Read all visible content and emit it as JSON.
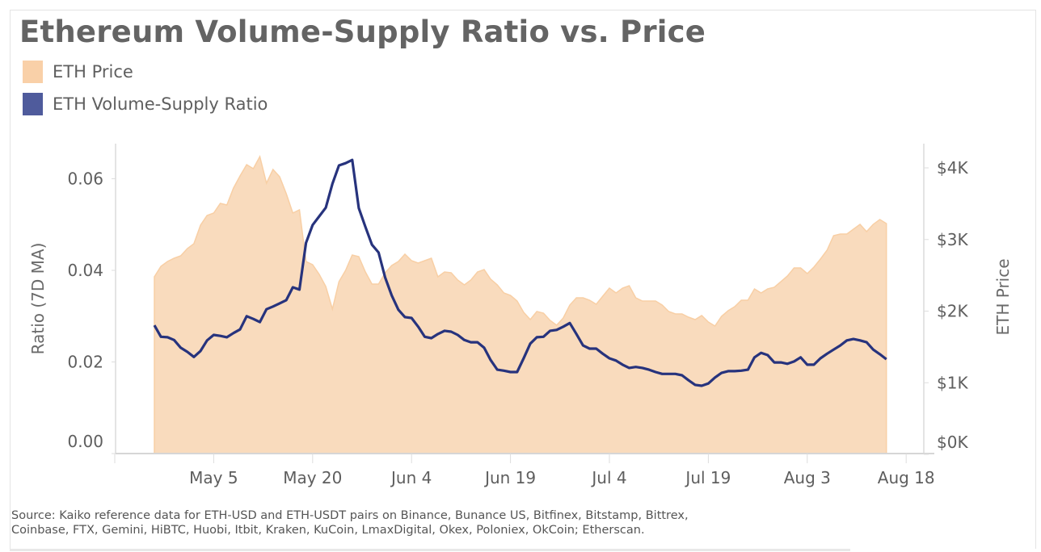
{
  "title": "Ethereum Volume-Supply Ratio vs. Price",
  "legend": [
    {
      "label": "ETH Price",
      "color": "#f9d0a8"
    },
    {
      "label": "ETH Volume-Supply Ratio",
      "color": "#4f5b9c"
    }
  ],
  "footer": {
    "line1": "Source: Kaiko reference data for ETH-USD and ETH-USDT pairs on Binance, Bunance US, Bitfinex, Bitstamp, Bittrex,",
    "line2": "Coinbase, FTX, Gemini, HiBTC, Huobi, Itbit, Kraken, KuCoin, LmaxDigital, Okex, Poloniex, OkCoin; Etherscan."
  },
  "chart_data": {
    "type": "area+line",
    "title": "Ethereum Volume-Supply Ratio vs. Price",
    "ylabel_left": "Ratio (7D MA)",
    "ylabel_right": "ETH Price",
    "ylim_left": [
      0,
      0.065
    ],
    "ylim_right": [
      0,
      4300
    ],
    "left_ticks": [
      "0.00",
      "0.02",
      "0.04",
      "0.06"
    ],
    "left_tick_values": [
      0,
      0.02,
      0.04,
      0.06
    ],
    "right_ticks": [
      "$0K",
      "$1K",
      "$2K",
      "$3K",
      "$4K"
    ],
    "right_tick_values": [
      0,
      1000,
      2000,
      3000,
      4000
    ],
    "x_ticks": [
      "May 5",
      "May 20",
      "Jun 4",
      "Jun 19",
      "Jul 4",
      "Jul 19",
      "Aug 3",
      "Aug 18"
    ],
    "xlim": [
      "Apr 20",
      "Aug 22"
    ],
    "grid": false,
    "legend_placement": "top-left",
    "x": [
      "Apr 26",
      "Apr 27",
      "Apr 28",
      "Apr 29",
      "Apr 30",
      "May 1",
      "May 2",
      "May 3",
      "May 4",
      "May 5",
      "May 6",
      "May 7",
      "May 8",
      "May 9",
      "May 10",
      "May 11",
      "May 12",
      "May 13",
      "May 14",
      "May 15",
      "May 16",
      "May 17",
      "May 18",
      "May 19",
      "May 20",
      "May 21",
      "May 22",
      "May 23",
      "May 24",
      "May 25",
      "May 26",
      "May 27",
      "May 28",
      "May 29",
      "May 30",
      "May 31",
      "Jun 1",
      "Jun 2",
      "Jun 3",
      "Jun 4",
      "Jun 5",
      "Jun 6",
      "Jun 7",
      "Jun 8",
      "Jun 9",
      "Jun 10",
      "Jun 11",
      "Jun 12",
      "Jun 13",
      "Jun 14",
      "Jun 15",
      "Jun 16",
      "Jun 17",
      "Jun 18",
      "Jun 19",
      "Jun 20",
      "Jun 21",
      "Jun 22",
      "Jun 23",
      "Jun 24",
      "Jun 25",
      "Jun 26",
      "Jun 27",
      "Jun 28",
      "Jun 29",
      "Jun 30",
      "Jul 1",
      "Jul 2",
      "Jul 3",
      "Jul 4",
      "Jul 5",
      "Jul 6",
      "Jul 7",
      "Jul 8",
      "Jul 9",
      "Jul 10",
      "Jul 11",
      "Jul 12",
      "Jul 13",
      "Jul 14",
      "Jul 15",
      "Jul 16",
      "Jul 17",
      "Jul 18",
      "Jul 19",
      "Jul 20",
      "Jul 21",
      "Jul 22",
      "Jul 23",
      "Jul 24",
      "Jul 25",
      "Jul 26",
      "Jul 27",
      "Jul 28",
      "Jul 29",
      "Jul 30",
      "Jul 31",
      "Aug 1",
      "Aug 2",
      "Aug 3",
      "Aug 4",
      "Aug 5",
      "Aug 6",
      "Aug 7",
      "Aug 8",
      "Aug 9",
      "Aug 10",
      "Aug 11",
      "Aug 12",
      "Aug 13",
      "Aug 14",
      "Aug 15"
    ],
    "series": [
      {
        "name": "ETH Price",
        "axis": "right",
        "kind": "area",
        "color": "#f9dbbd",
        "stroke": "#f8cfa5",
        "values": [
          2479,
          2625,
          2693,
          2738,
          2772,
          2873,
          2941,
          3200,
          3335,
          3369,
          3504,
          3482,
          3718,
          3887,
          4045,
          3989,
          4158,
          3786,
          3977,
          3876,
          3639,
          3369,
          3414,
          2693,
          2648,
          2513,
          2344,
          2028,
          2411,
          2569,
          2783,
          2761,
          2546,
          2377,
          2377,
          2535,
          2637,
          2693,
          2794,
          2704,
          2670,
          2704,
          2738,
          2479,
          2546,
          2535,
          2434,
          2366,
          2434,
          2546,
          2580,
          2445,
          2366,
          2254,
          2220,
          2141,
          1983,
          1882,
          1994,
          1972,
          1870,
          1803,
          1904,
          2085,
          2186,
          2186,
          2152,
          2096,
          2208,
          2321,
          2254,
          2321,
          2355,
          2186,
          2141,
          2141,
          2141,
          2085,
          1994,
          1961,
          1961,
          1915,
          1882,
          1938,
          1848,
          1792,
          1927,
          2006,
          2062,
          2152,
          2152,
          2310,
          2254,
          2310,
          2332,
          2411,
          2490,
          2603,
          2603,
          2524,
          2614,
          2727,
          2851,
          3054,
          3076,
          3076,
          3144,
          3211,
          3110,
          3211,
          3279,
          3223
        ]
      },
      {
        "name": "ETH Volume-Supply Ratio",
        "axis": "left",
        "kind": "line",
        "color": "#27337d",
        "values": [
          0.028,
          0.0255,
          0.0254,
          0.0248,
          0.0231,
          0.0222,
          0.0211,
          0.0224,
          0.0247,
          0.0259,
          0.0257,
          0.0254,
          0.0263,
          0.0271,
          0.03,
          0.0294,
          0.0287,
          0.0315,
          0.0321,
          0.0328,
          0.0335,
          0.0363,
          0.0358,
          0.046,
          0.0499,
          0.0518,
          0.0537,
          0.0589,
          0.0629,
          0.0634,
          0.0641,
          0.0536,
          0.0495,
          0.0456,
          0.0439,
          0.0384,
          0.0345,
          0.0314,
          0.0298,
          0.0296,
          0.0277,
          0.0255,
          0.0252,
          0.0261,
          0.0268,
          0.0266,
          0.0259,
          0.0248,
          0.0243,
          0.0243,
          0.0231,
          0.0204,
          0.0183,
          0.0181,
          0.0178,
          0.0178,
          0.0208,
          0.024,
          0.0254,
          0.0255,
          0.0268,
          0.027,
          0.0277,
          0.0285,
          0.0261,
          0.0236,
          0.0229,
          0.0229,
          0.0218,
          0.0208,
          0.0203,
          0.0194,
          0.0187,
          0.0189,
          0.0187,
          0.0183,
          0.0178,
          0.0174,
          0.0174,
          0.0174,
          0.0171,
          0.016,
          0.015,
          0.0148,
          0.0153,
          0.0166,
          0.0176,
          0.018,
          0.018,
          0.0181,
          0.0183,
          0.021,
          0.022,
          0.0215,
          0.0199,
          0.0199,
          0.0196,
          0.0201,
          0.021,
          0.0194,
          0.0194,
          0.0208,
          0.0218,
          0.0227,
          0.0236,
          0.0247,
          0.025,
          0.0247,
          0.0243,
          0.0227,
          0.0217,
          0.0206
        ]
      }
    ]
  }
}
